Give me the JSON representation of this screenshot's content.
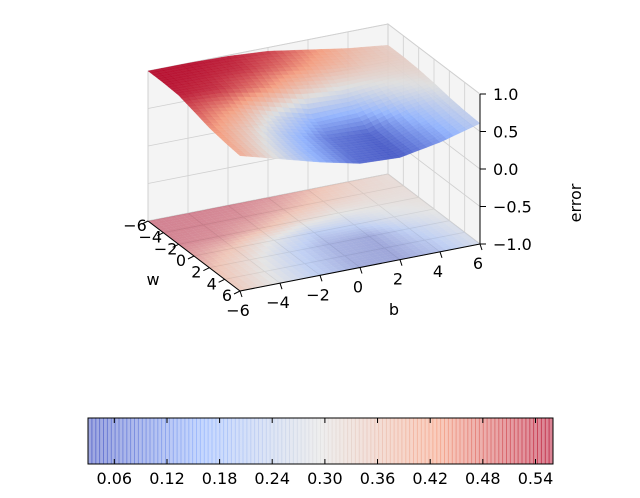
{
  "chart_data": [
    {
      "type": "surface3d",
      "title": "",
      "xlabel": "w",
      "ylabel": "b",
      "zlabel": "error",
      "x_range": [
        -6,
        6
      ],
      "y_range": [
        -6,
        6
      ],
      "z_range": [
        -1.0,
        1.0
      ],
      "x_ticks": [
        "−6",
        "−4",
        "−2",
        "0",
        "2",
        "4",
        "6"
      ],
      "y_ticks": [
        "−6",
        "−4",
        "−2",
        "0",
        "2",
        "4",
        "6"
      ],
      "z_ticks": [
        "−1.0",
        "−0.5",
        "0.0",
        "0.5",
        "1.0"
      ],
      "colormap": "coolwarm",
      "grid": true,
      "contour_projection": "offset below surface",
      "error_min": 0.03,
      "error_max": 0.56,
      "surface_samples": {
        "w": [
          -6,
          -4,
          -2,
          0,
          2,
          4,
          6
        ],
        "b": [
          -6,
          -4,
          -2,
          0,
          2,
          4,
          6
        ],
        "error": [
          [
            0.56,
            0.56,
            0.55,
            0.52,
            0.45,
            0.38,
            0.33
          ],
          [
            0.56,
            0.55,
            0.53,
            0.47,
            0.4,
            0.35,
            0.33
          ],
          [
            0.55,
            0.53,
            0.46,
            0.36,
            0.3,
            0.31,
            0.32
          ],
          [
            0.5,
            0.42,
            0.28,
            0.16,
            0.18,
            0.26,
            0.3
          ],
          [
            0.45,
            0.34,
            0.2,
            0.08,
            0.05,
            0.18,
            0.27
          ],
          [
            0.42,
            0.3,
            0.17,
            0.07,
            0.04,
            0.14,
            0.25
          ],
          [
            0.4,
            0.28,
            0.16,
            0.06,
            0.04,
            0.12,
            0.24
          ]
        ]
      }
    },
    {
      "type": "colorbar",
      "colormap": "coolwarm",
      "range": [
        0.03,
        0.56
      ],
      "tick_values": [
        0.06,
        0.12,
        0.18,
        0.24,
        0.3,
        0.36,
        0.42,
        0.48,
        0.54
      ],
      "tick_labels": [
        "0.06",
        "0.12",
        "0.18",
        "0.24",
        "0.30",
        "0.36",
        "0.42",
        "0.48",
        "0.54"
      ]
    }
  ]
}
